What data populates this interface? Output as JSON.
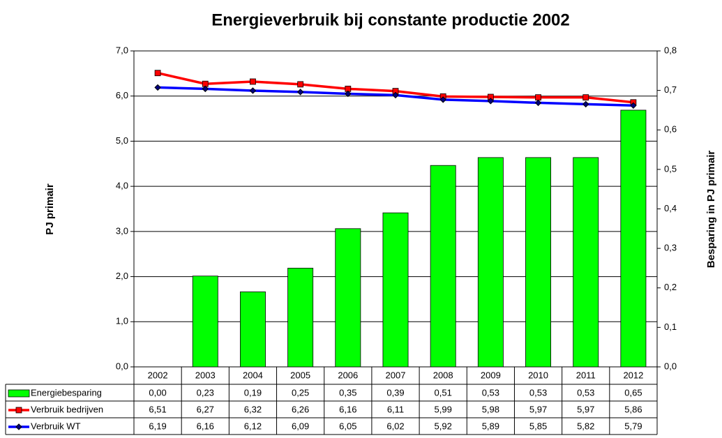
{
  "chart_data": {
    "type": "bar",
    "title": "Energieverbruik bij constante productie 2002",
    "y_label": "PJ primair",
    "y2_label": "Besparing in PJ primair",
    "categories": [
      "2002",
      "2003",
      "2004",
      "2005",
      "2006",
      "2007",
      "2008",
      "2009",
      "2010",
      "2011",
      "2012"
    ],
    "series": [
      {
        "name": "Energiebesparing",
        "type": "bar",
        "axis": "y2",
        "color": "#00ff00",
        "values": [
          0.0,
          0.23,
          0.19,
          0.25,
          0.35,
          0.39,
          0.51,
          0.53,
          0.53,
          0.53,
          0.65
        ],
        "value_labels": [
          "0,00",
          "0,23",
          "0,19",
          "0,25",
          "0,35",
          "0,39",
          "0,51",
          "0,53",
          "0,53",
          "0,53",
          "0,65"
        ]
      },
      {
        "name": "Verbruik bedrijven",
        "type": "line",
        "marker": "square",
        "color": "#ff0000",
        "values": [
          6.51,
          6.27,
          6.32,
          6.26,
          6.16,
          6.11,
          5.99,
          5.98,
          5.97,
          5.97,
          5.86
        ],
        "value_labels": [
          "6,51",
          "6,27",
          "6,32",
          "6,26",
          "6,16",
          "6,11",
          "5,99",
          "5,98",
          "5,97",
          "5,97",
          "5,86"
        ]
      },
      {
        "name": "Verbruik WT",
        "type": "line",
        "marker": "diamond",
        "color": "#0000ff",
        "values": [
          6.19,
          6.16,
          6.12,
          6.09,
          6.05,
          6.02,
          5.92,
          5.89,
          5.85,
          5.82,
          5.79
        ],
        "value_labels": [
          "6,19",
          "6,16",
          "6,12",
          "6,09",
          "6,05",
          "6,02",
          "5,92",
          "5,89",
          "5,85",
          "5,82",
          "5,79"
        ]
      }
    ],
    "ylim": [
      0,
      7
    ],
    "yticks": [
      {
        "value": 0,
        "label": "0,0"
      },
      {
        "value": 1,
        "label": "1,0"
      },
      {
        "value": 2,
        "label": "2,0"
      },
      {
        "value": 3,
        "label": "3,0"
      },
      {
        "value": 4,
        "label": "4,0"
      },
      {
        "value": 5,
        "label": "5,0"
      },
      {
        "value": 6,
        "label": "6,0"
      },
      {
        "value": 7,
        "label": "7,0"
      }
    ],
    "y2lim": [
      0,
      0.8
    ],
    "y2ticks": [
      {
        "value": 0,
        "label": "0,0"
      },
      {
        "value": 0.1,
        "label": "0,1"
      },
      {
        "value": 0.2,
        "label": "0,2"
      },
      {
        "value": 0.3,
        "label": "0,3"
      },
      {
        "value": 0.4,
        "label": "0,4"
      },
      {
        "value": 0.5,
        "label": "0,5"
      },
      {
        "value": 0.6,
        "label": "0,6"
      },
      {
        "value": 0.7,
        "label": "0,7"
      },
      {
        "value": 0.8,
        "label": "0,8"
      }
    ],
    "grid": true
  }
}
